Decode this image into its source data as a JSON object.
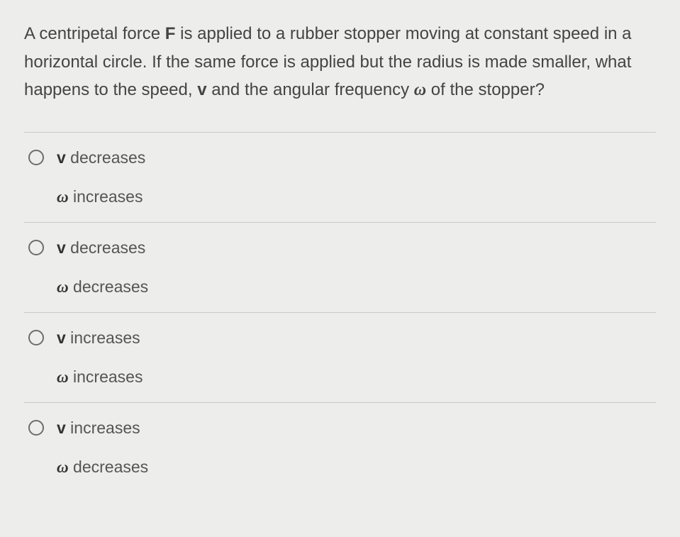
{
  "question": {
    "seg1": "A centripetal force ",
    "F": "F",
    "seg2": " is applied to a rubber stopper moving at constant speed in a horizontal circle. If the same force is applied but the radius is made smaller, what happens to the speed, ",
    "v": "v",
    "seg3": " and the angular frequency ",
    "omega": "ω",
    "seg4": " of the stopper?"
  },
  "options": [
    {
      "v_sym": "v",
      "v_txt": " decreases",
      "w_sym": "ω",
      "w_txt": " increases"
    },
    {
      "v_sym": "v",
      "v_txt": " decreases",
      "w_sym": "ω",
      "w_txt": " decreases"
    },
    {
      "v_sym": "v",
      "v_txt": " increases",
      "w_sym": "ω",
      "w_txt": " increases"
    },
    {
      "v_sym": "v",
      "v_txt": " increases",
      "w_sym": "ω",
      "w_txt": " decreases"
    }
  ],
  "colors": {
    "background": "#ededeb",
    "text": "#3a3a3a",
    "divider": "#c9c9c7",
    "radio_border": "#6d6d6d"
  }
}
